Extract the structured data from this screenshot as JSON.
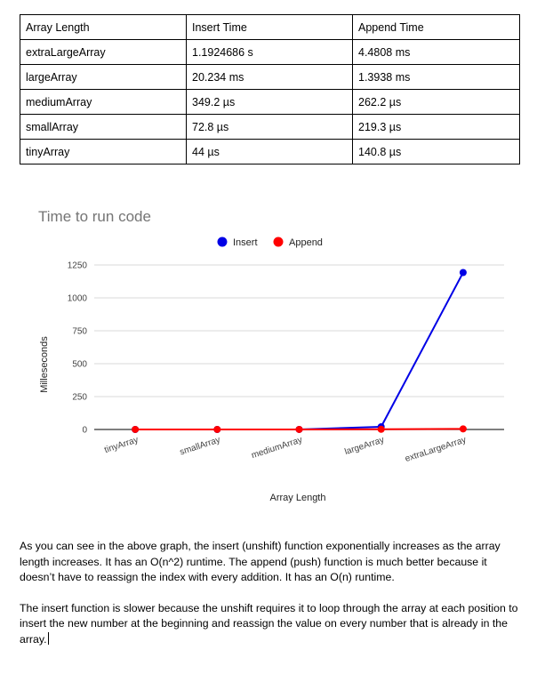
{
  "table": {
    "headers": [
      "Array Length",
      "Insert Time",
      "Append Time"
    ],
    "rows": [
      [
        "extraLargeArray",
        "1.1924686 s",
        "4.4808 ms"
      ],
      [
        "largeArray",
        "20.234 ms",
        "1.3938 ms"
      ],
      [
        "mediumArray",
        "349.2 µs",
        "262.2 µs"
      ],
      [
        "smallArray",
        "72.8 µs",
        "219.3 µs"
      ],
      [
        "tinyArray",
        "44 µs",
        "140.8 µs"
      ]
    ]
  },
  "chart_data": {
    "type": "line",
    "title": "Time to run code",
    "xlabel": "Array Length",
    "ylabel": "Milleseconds",
    "categories": [
      "tinyArray",
      "smallArray",
      "mediumArray",
      "largeArray",
      "extraLargeArray"
    ],
    "series": [
      {
        "name": "Insert",
        "color": "#0000e6",
        "values": [
          0.044,
          0.0728,
          0.3492,
          20.234,
          1192.4686
        ]
      },
      {
        "name": "Append",
        "color": "#ff0000",
        "values": [
          0.1408,
          0.2193,
          0.2622,
          1.3938,
          4.4808
        ]
      }
    ],
    "yticks": [
      0,
      250,
      500,
      750,
      1000,
      1250
    ],
    "ylim": [
      0,
      1250
    ],
    "grid": true,
    "legend_position": "top"
  },
  "prose": {
    "paragraph1": "As you can see in the above graph, the insert (unshift) function exponentially increases as the array length increases.  It has an O(n^2) runtime.  The append (push) function is much better because it doesn’t have to reassign the index with every addition.  It has an O(n) runtime.",
    "paragraph2": "The insert function is slower because the unshift requires it to loop through the array at each position to insert the new number at the beginning and reassign the value on every number that is already in the array."
  }
}
